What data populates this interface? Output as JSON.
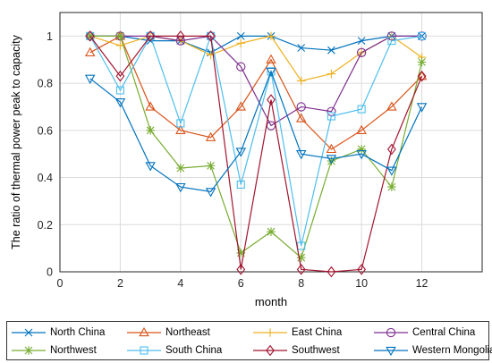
{
  "chart_data": {
    "type": "line",
    "xlabel": "month",
    "ylabel": "The ratio of thermal power peak to capacity",
    "xlim": [
      0,
      14
    ],
    "ylim": [
      0,
      1.1
    ],
    "xticks": [
      "0",
      "2",
      "4",
      "6",
      "8",
      "10",
      "12"
    ],
    "yticks": [
      "0",
      "0.2",
      "0.4",
      "0.6",
      "0.8",
      "1"
    ],
    "grid": true,
    "legend_position": "bottom",
    "x": [
      1,
      2,
      3,
      4,
      5,
      6,
      7,
      8,
      9,
      10,
      11,
      12
    ],
    "series": [
      {
        "name": "North China",
        "marker": "x",
        "color": "#0072BD",
        "values": [
          1.0,
          1.0,
          0.98,
          0.98,
          0.93,
          1.0,
          1.0,
          0.95,
          0.94,
          0.98,
          1.0,
          1.0
        ]
      },
      {
        "name": "Northeast",
        "marker": "triangle-up",
        "color": "#D95319",
        "values": [
          0.93,
          1.0,
          0.7,
          0.6,
          0.57,
          0.7,
          0.9,
          0.65,
          0.52,
          0.6,
          0.7,
          0.83
        ]
      },
      {
        "name": "East China",
        "marker": "plus",
        "color": "#EDB120",
        "values": [
          1.0,
          0.96,
          1.0,
          0.98,
          0.92,
          0.97,
          1.0,
          0.81,
          0.84,
          0.93,
          1.0,
          0.91
        ]
      },
      {
        "name": "Central China",
        "marker": "circle",
        "color": "#7E2F8E",
        "values": [
          1.0,
          1.0,
          1.0,
          0.98,
          1.0,
          0.87,
          0.62,
          0.7,
          0.68,
          0.93,
          1.0,
          1.0
        ]
      },
      {
        "name": "Northwest",
        "marker": "asterisk",
        "color": "#77AC30",
        "values": [
          1.0,
          1.0,
          0.6,
          0.44,
          0.45,
          0.08,
          0.17,
          0.06,
          0.47,
          0.52,
          0.36,
          0.89
        ]
      },
      {
        "name": "South China",
        "marker": "square",
        "color": "#4DBEEE",
        "values": [
          1.0,
          0.77,
          1.0,
          0.63,
          1.0,
          0.37,
          0.85,
          0.11,
          0.66,
          0.69,
          0.98,
          1.0
        ]
      },
      {
        "name": "Southwest",
        "marker": "diamond",
        "color": "#A2142F",
        "values": [
          1.0,
          0.83,
          1.0,
          1.0,
          1.0,
          0.01,
          0.73,
          0.01,
          0.0,
          0.01,
          0.52,
          0.83
        ]
      },
      {
        "name": "Western Mongolia",
        "marker": "triangle-down",
        "color": "#0072BD",
        "values": [
          0.82,
          0.72,
          0.45,
          0.36,
          0.34,
          0.51,
          0.85,
          0.5,
          0.48,
          0.5,
          0.43,
          0.7
        ]
      }
    ]
  }
}
